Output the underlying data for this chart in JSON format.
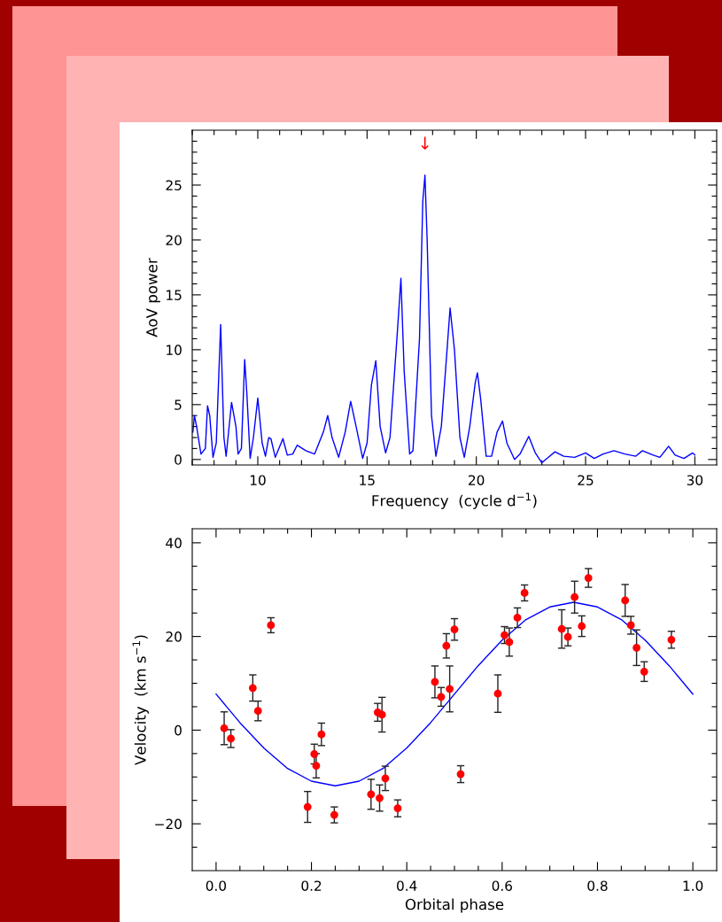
{
  "chart_data": [
    {
      "type": "line",
      "xlabel": "Frequency  (cycle d$^{−1}$)",
      "ylabel": "AoV power",
      "x": [
        7.03,
        7.1,
        7.2,
        7.4,
        7.6,
        7.7,
        7.8,
        7.95,
        8.1,
        8.3,
        8.45,
        8.55,
        8.8,
        9.0,
        9.1,
        9.25,
        9.4,
        9.5,
        9.65,
        9.8,
        10.0,
        10.2,
        10.35,
        10.5,
        10.6,
        10.8,
        11.15,
        11.35,
        11.6,
        11.8,
        12.2,
        12.6,
        13.0,
        13.2,
        13.4,
        13.7,
        14.0,
        14.25,
        14.5,
        14.8,
        15.0,
        15.2,
        15.4,
        15.6,
        15.85,
        16.05,
        16.4,
        16.55,
        16.7,
        16.95,
        17.1,
        17.4,
        17.55,
        17.65,
        17.75,
        17.95,
        18.15,
        18.4,
        18.65,
        18.8,
        19.0,
        19.25,
        19.45,
        19.7,
        19.95,
        20.05,
        20.2,
        20.45,
        20.7,
        20.95,
        21.2,
        21.4,
        21.75,
        22.0,
        22.4,
        22.7,
        23.0,
        23.3,
        23.6,
        24.0,
        24.5,
        25.0,
        25.4,
        25.8,
        26.3,
        26.8,
        27.3,
        27.6,
        28.1,
        28.4,
        28.8,
        29.1,
        29.5,
        29.9,
        30.0
      ],
      "series": [
        {
          "color": "#0000ff",
          "values": [
            2.5,
            4.0,
            3.0,
            0.5,
            1.0,
            4.9,
            4.0,
            0.2,
            1.5,
            12.3,
            2.0,
            0.3,
            5.2,
            3.0,
            0.5,
            1.0,
            9.1,
            6.0,
            0.1,
            2.0,
            5.6,
            1.5,
            0.3,
            2.0,
            1.9,
            0.2,
            1.9,
            0.4,
            0.5,
            1.3,
            0.8,
            0.5,
            2.5,
            4.0,
            2.0,
            0.2,
            2.5,
            5.3,
            3.0,
            0.1,
            1.5,
            6.8,
            9.0,
            3.0,
            0.6,
            2.0,
            12.0,
            16.5,
            8.0,
            0.5,
            0.8,
            11.0,
            23.5,
            25.9,
            20.0,
            4.0,
            0.3,
            3.0,
            9.7,
            13.8,
            10.0,
            2.0,
            0.2,
            3.0,
            7.0,
            7.9,
            5.5,
            0.3,
            0.3,
            2.5,
            3.5,
            1.5,
            0.0,
            0.5,
            2.1,
            0.6,
            -0.3,
            0.2,
            0.7,
            0.3,
            0.2,
            0.6,
            0.1,
            0.5,
            0.8,
            0.5,
            0.3,
            0.8,
            0.4,
            0.2,
            1.2,
            0.4,
            0.1,
            0.6,
            0.4
          ]
        }
      ],
      "xlim": [
        7,
        31
      ],
      "ylim": [
        -0.5,
        30
      ],
      "xticks": [
        {
          "value": 7,
          "label": null
        },
        {
          "value": 8,
          "label": null
        },
        {
          "value": 9,
          "label": null
        },
        10,
        {
          "value": 11,
          "label": null
        },
        {
          "value": 12,
          "label": null
        },
        {
          "value": 13,
          "label": null
        },
        {
          "value": 14,
          "label": null
        },
        15,
        {
          "value": 16,
          "label": null
        },
        {
          "value": 17,
          "label": null
        },
        {
          "value": 18,
          "label": null
        },
        {
          "value": 19,
          "label": null
        },
        20,
        {
          "value": 21,
          "label": null
        },
        {
          "value": 22,
          "label": null
        },
        {
          "value": 23,
          "label": null
        },
        {
          "value": 24,
          "label": null
        },
        25,
        {
          "value": 26,
          "label": null
        },
        {
          "value": 27,
          "label": null
        },
        {
          "value": 28,
          "label": null
        },
        {
          "value": 29,
          "label": null
        },
        30
      ],
      "yticks": [
        0,
        {
          "value": 1,
          "label": null
        },
        {
          "value": 2,
          "label": null
        },
        {
          "value": 3,
          "label": null
        },
        {
          "value": 4,
          "label": null
        },
        5,
        {
          "value": 6,
          "label": null
        },
        {
          "value": 7,
          "label": null
        },
        {
          "value": 8,
          "label": null
        },
        {
          "value": 9,
          "label": null
        },
        10,
        {
          "value": 11,
          "label": null
        },
        {
          "value": 12,
          "label": null
        },
        {
          "value": 13,
          "label": null
        },
        {
          "value": 14,
          "label": null
        },
        15,
        {
          "value": 16,
          "label": null
        },
        {
          "value": 17,
          "label": null
        },
        {
          "value": 18,
          "label": null
        },
        {
          "value": 19,
          "label": null
        },
        20,
        {
          "value": 21,
          "label": null
        },
        {
          "value": 22,
          "label": null
        },
        {
          "value": 23,
          "label": null
        },
        {
          "value": 24,
          "label": null
        },
        25,
        {
          "value": 26,
          "label": null
        },
        {
          "value": 27,
          "label": null
        },
        {
          "value": 28,
          "label": null
        },
        {
          "value": 29,
          "label": null
        }
      ],
      "annotations": [
        {
          "text": "↓",
          "x": 17.65,
          "y": 25.9
        }
      ],
      "grid": false,
      "legend": false,
      "line_style": "solid",
      "marker": "none"
    },
    {
      "type": "scatter",
      "xlabel": "Orbital phase",
      "ylabel": "Velocity  (km s$^{−1}$)",
      "x": [
        0.017,
        0.031,
        0.077,
        0.088,
        0.115,
        0.192,
        0.206,
        0.21,
        0.221,
        0.248,
        0.325,
        0.339,
        0.343,
        0.348,
        0.355,
        0.381,
        0.459,
        0.472,
        0.483,
        0.49,
        0.5,
        0.513,
        0.591,
        0.605,
        0.615,
        0.632,
        0.647,
        0.725,
        0.738,
        0.752,
        0.767,
        0.781,
        0.858,
        0.87,
        0.882,
        0.898,
        0.955
      ],
      "series": [
        {
          "type": "scatter",
          "color": "#ff0000",
          "marker": "circle",
          "values": [
            0.4,
            -1.8,
            9.0,
            4.1,
            22.4,
            -16.4,
            -5.1,
            -7.6,
            -0.9,
            -18.1,
            -13.7,
            3.8,
            -14.5,
            3.3,
            -10.3,
            -16.7,
            10.3,
            7.1,
            18.0,
            8.8,
            21.5,
            -9.4,
            7.8,
            20.3,
            18.8,
            24.0,
            29.3,
            21.6,
            19.9,
            28.4,
            22.2,
            32.5,
            27.7,
            22.4,
            17.6,
            12.5,
            19.3
          ],
          "errors": [
            3.5,
            1.9,
            2.8,
            2.1,
            1.6,
            3.3,
            2.1,
            2.6,
            2.4,
            1.7,
            3.2,
            1.9,
            2.8,
            3.7,
            2.6,
            1.8,
            3.4,
            2.0,
            2.6,
            4.9,
            2.3,
            1.8,
            4.0,
            1.8,
            3.0,
            2.1,
            1.7,
            4.1,
            1.9,
            3.4,
            2.2,
            2.0,
            3.4,
            1.9,
            3.8,
            2.1,
            1.8
          ]
        },
        {
          "type": "line",
          "color": "#0000ff",
          "x": [
            0,
            0.05,
            0.1,
            0.15,
            0.2,
            0.25,
            0.3,
            0.35,
            0.4,
            0.45,
            0.5,
            0.55,
            0.6,
            0.65,
            0.7,
            0.75,
            0.8,
            0.85,
            0.9,
            0.95,
            1.0
          ],
          "values": [
            7.7,
            1.6,
            -3.8,
            -8.2,
            -10.9,
            -11.9,
            -10.9,
            -8.2,
            -3.8,
            1.6,
            7.7,
            13.8,
            19.2,
            23.6,
            26.3,
            27.3,
            26.3,
            23.6,
            19.2,
            13.8,
            7.7
          ]
        }
      ],
      "xlim": [
        -0.05,
        1.05
      ],
      "ylim": [
        -30,
        43
      ],
      "xticks": [
        {
          "value": 0,
          "label": "0.0"
        },
        {
          "value": 0.05,
          "label": null
        },
        {
          "value": 0.1,
          "label": null
        },
        {
          "value": 0.15,
          "label": null
        },
        {
          "value": 0.2,
          "label": "0.2"
        },
        {
          "value": 0.25,
          "label": null
        },
        {
          "value": 0.3,
          "label": null
        },
        {
          "value": 0.35,
          "label": null
        },
        {
          "value": 0.4,
          "label": "0.4"
        },
        {
          "value": 0.45,
          "label": null
        },
        {
          "value": 0.5,
          "label": null
        },
        {
          "value": 0.55,
          "label": null
        },
        {
          "value": 0.6,
          "label": "0.6"
        },
        {
          "value": 0.65,
          "label": null
        },
        {
          "value": 0.7,
          "label": null
        },
        {
          "value": 0.75,
          "label": null
        },
        {
          "value": 0.8,
          "label": "0.8"
        },
        {
          "value": 0.85,
          "label": null
        },
        {
          "value": 0.9,
          "label": null
        },
        {
          "value": 0.95,
          "label": null
        },
        {
          "value": 1.0,
          "label": "1.0"
        }
      ],
      "yticks": [
        {
          "value": -25,
          "label": null
        },
        {
          "value": -20,
          "label": "−20"
        },
        {
          "value": -15,
          "label": null
        },
        {
          "value": -10,
          "label": null
        },
        {
          "value": -5,
          "label": null
        },
        0,
        {
          "value": 5,
          "label": null
        },
        {
          "value": 10,
          "label": null
        },
        {
          "value": 15,
          "label": null
        },
        20,
        {
          "value": 25,
          "label": null
        },
        {
          "value": 30,
          "label": null
        },
        {
          "value": 35,
          "label": null
        },
        40
      ],
      "grid": false,
      "legend": false
    }
  ]
}
